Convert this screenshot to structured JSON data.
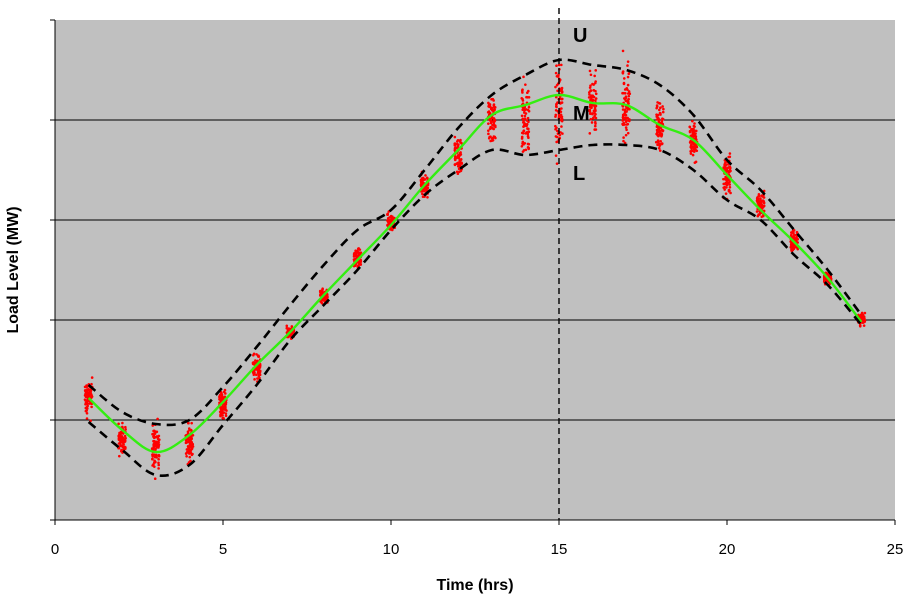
{
  "chart_data": {
    "type": "scatter",
    "title": "",
    "xlabel": "Time (hrs)",
    "ylabel": "Load Level (MW)",
    "xlim": [
      0,
      25
    ],
    "ylim": [
      0,
      5
    ],
    "x_ticks": [
      0,
      5,
      10,
      15,
      20,
      25
    ],
    "x_tick_labels": [
      "0",
      "5",
      "10",
      "15",
      "20",
      "25"
    ],
    "y_gridlines": [
      1,
      2,
      3,
      4
    ],
    "y_tick_labels_shown": false,
    "grid": true,
    "background_color": "#c0c0c0",
    "reference_line": {
      "x": 15,
      "style": "dashed",
      "color": "#000000"
    },
    "hours": [
      1,
      2,
      3,
      4,
      5,
      6,
      7,
      8,
      9,
      10,
      11,
      12,
      13,
      14,
      15,
      16,
      17,
      18,
      19,
      20,
      21,
      22,
      23,
      24
    ],
    "series": [
      {
        "label": "U",
        "style": "dashed",
        "color": "#000000",
        "values": [
          1.35,
          1.08,
          0.96,
          1.0,
          1.33,
          1.73,
          2.15,
          2.55,
          2.9,
          3.1,
          3.5,
          3.92,
          4.25,
          4.45,
          4.6,
          4.55,
          4.5,
          4.35,
          4.05,
          3.6,
          3.3,
          2.9,
          2.5,
          2.05
        ]
      },
      {
        "label": "M",
        "style": "solid",
        "color": "#33ee11",
        "values": [
          1.22,
          0.9,
          0.68,
          0.85,
          1.18,
          1.55,
          1.88,
          2.25,
          2.6,
          2.95,
          3.35,
          3.7,
          4.05,
          4.15,
          4.25,
          4.17,
          4.15,
          3.95,
          3.8,
          3.45,
          3.1,
          2.78,
          2.42,
          1.98
        ]
      },
      {
        "label": "L",
        "style": "dashed",
        "color": "#000000",
        "values": [
          0.98,
          0.7,
          0.45,
          0.55,
          0.95,
          1.35,
          1.8,
          2.15,
          2.5,
          2.9,
          3.25,
          3.5,
          3.7,
          3.65,
          3.7,
          3.75,
          3.75,
          3.7,
          3.5,
          3.2,
          3.0,
          2.65,
          2.35,
          1.95
        ]
      }
    ],
    "samples": {
      "color": "#ff0000",
      "per_hour": 80,
      "spread_low": [
        0.95,
        0.55,
        0.4,
        0.48,
        0.93,
        1.32,
        1.78,
        2.12,
        2.48,
        2.88,
        3.2,
        3.35,
        3.6,
        3.4,
        3.45,
        3.75,
        3.65,
        3.55,
        3.5,
        3.15,
        2.98,
        2.63,
        2.33,
        1.93
      ],
      "spread_high": [
        1.5,
        1.0,
        1.1,
        1.05,
        1.35,
        1.7,
        1.95,
        2.35,
        2.75,
        3.1,
        3.5,
        3.9,
        4.38,
        4.55,
        4.72,
        4.6,
        4.75,
        4.35,
        4.05,
        3.75,
        3.35,
        2.95,
        2.5,
        2.1
      ]
    }
  }
}
